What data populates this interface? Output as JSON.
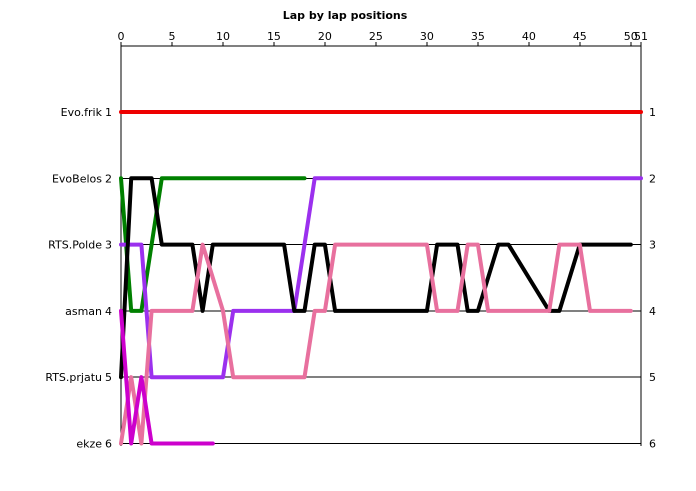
{
  "chart_data": {
    "type": "line",
    "title": "Lap by lap positions",
    "x_ticks": [
      0,
      5,
      10,
      15,
      20,
      25,
      30,
      35,
      40,
      45,
      50,
      51
    ],
    "xlim": [
      0,
      51
    ],
    "y_positions": [
      1,
      2,
      3,
      4,
      5,
      6
    ],
    "y_labels": [
      "Evo.frik",
      "EvoBelos",
      "RTS.Polde",
      "asman",
      "RTS.prjatu",
      "ekze"
    ],
    "grid": "horizontal",
    "series": [
      {
        "name": "Evo.frik",
        "color": "#ee0000",
        "x": [
          0,
          51
        ],
        "y": [
          1,
          1
        ]
      },
      {
        "name": "EvoBelos",
        "color": "#008000",
        "x": [
          0,
          1,
          2,
          3,
          4,
          18
        ],
        "y": [
          2,
          4,
          4,
          3,
          2,
          2
        ]
      },
      {
        "name": "RTS.Polde",
        "color": "#9b30ee",
        "x": [
          0,
          1,
          2,
          3,
          10,
          11,
          17,
          18,
          19,
          51
        ],
        "y": [
          3,
          3,
          3,
          5,
          5,
          4,
          4,
          3,
          2,
          2
        ]
      },
      {
        "name": "asman",
        "color": "#000000",
        "x": [
          0,
          1,
          3,
          4,
          7,
          8,
          9,
          16,
          17,
          18,
          19,
          20,
          21,
          30,
          31,
          33,
          34,
          35,
          37,
          38,
          42,
          43,
          45,
          46,
          50
        ],
        "y": [
          5,
          2,
          2,
          3,
          3,
          4,
          3,
          3,
          4,
          4,
          3,
          3,
          4,
          4,
          3,
          3,
          4,
          4,
          3,
          3,
          4,
          4,
          3,
          3,
          3
        ]
      },
      {
        "name": "RTS.prjatu",
        "color": "#e8709e",
        "x": [
          0,
          1,
          2,
          3,
          7,
          8,
          10,
          11,
          18,
          19,
          20,
          21,
          30,
          31,
          33,
          34,
          35,
          36,
          42,
          43,
          45,
          46,
          50
        ],
        "y": [
          6,
          5,
          6,
          4,
          4,
          3,
          4,
          5,
          5,
          4,
          4,
          3,
          3,
          4,
          4,
          3,
          3,
          4,
          4,
          3,
          3,
          4,
          4
        ]
      },
      {
        "name": "ekze",
        "color": "#cc00cc",
        "x": [
          0,
          1,
          2,
          3,
          9
        ],
        "y": [
          4,
          6,
          5,
          6,
          6
        ]
      }
    ]
  }
}
